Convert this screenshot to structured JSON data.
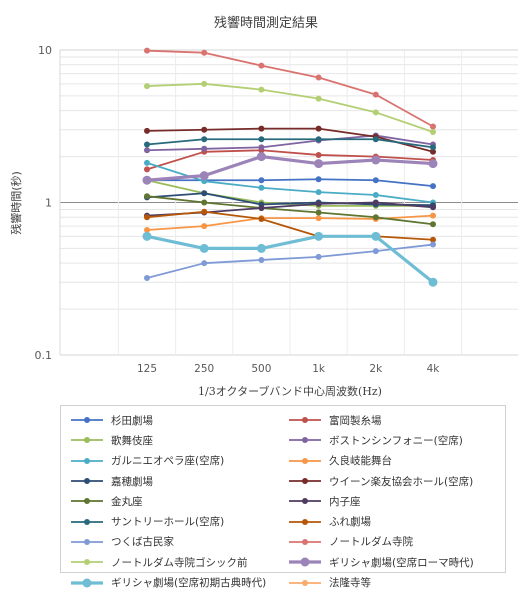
{
  "chart_data": {
    "type": "line",
    "title": "残響時間測定結果",
    "xlabel": "1/3オクターブバンド中心周波数(Hz)",
    "ylabel": "残響時間(秒)",
    "yscale": "log",
    "ylim": [
      0.1,
      10
    ],
    "yticks": [
      "10",
      "1",
      "0.1"
    ],
    "categories": [
      "125",
      "250",
      "500",
      "1k",
      "2k",
      "4k"
    ],
    "grid": "minor log gridlines, major line at 1",
    "legend_position": "bottom",
    "series": [
      {
        "name": "杉田劇場",
        "color": "#4472c4",
        "values": [
          1.4,
          1.4,
          1.4,
          1.42,
          1.4,
          1.28
        ]
      },
      {
        "name": "富岡製糸場",
        "color": "#c0504d",
        "values": [
          1.65,
          2.15,
          2.2,
          2.05,
          2.0,
          1.9
        ]
      },
      {
        "name": "歌舞伎座",
        "color": "#9bbb59",
        "values": [
          1.4,
          1.15,
          1.0,
          0.95,
          0.95,
          0.95
        ]
      },
      {
        "name": "ボストンシンフォニー(空席)",
        "color": "#8064a2",
        "values": [
          2.2,
          2.25,
          2.3,
          2.55,
          2.75,
          2.4
        ]
      },
      {
        "name": "ガルニエオペラ座(空席)",
        "color": "#4bacc6",
        "values": [
          1.82,
          1.38,
          1.25,
          1.17,
          1.12,
          1.0
        ]
      },
      {
        "name": "久良岐能舞台",
        "color": "#f79646",
        "values": [
          0.66,
          0.7,
          0.79,
          0.79,
          0.78,
          0.82
        ]
      },
      {
        "name": "嘉穂劇場",
        "color": "#2c4d75",
        "values": [
          1.08,
          1.15,
          0.97,
          1.0,
          0.97,
          0.96
        ]
      },
      {
        "name": "ウイーン楽友協会ホール(空席)",
        "color": "#772c2a",
        "values": [
          2.95,
          3.0,
          3.05,
          3.05,
          2.7,
          2.15
        ]
      },
      {
        "name": "金丸座",
        "color": "#5f7530",
        "values": [
          1.1,
          1.0,
          0.92,
          0.86,
          0.8,
          0.72
        ]
      },
      {
        "name": "内子座",
        "color": "#4d3b62",
        "values": [
          0.82,
          0.86,
          0.92,
          0.98,
          1.0,
          0.93
        ]
      },
      {
        "name": "サントリーホール(空席)",
        "color": "#276a7c",
        "values": [
          2.4,
          2.6,
          2.6,
          2.6,
          2.6,
          2.3
        ]
      },
      {
        "name": "ふれ劇場",
        "color": "#b65708",
        "values": [
          0.8,
          0.87,
          0.78,
          0.6,
          0.6,
          0.57
        ]
      },
      {
        "name": "つくば古民家",
        "color": "#7f9ad6",
        "values": [
          0.32,
          0.4,
          0.42,
          0.44,
          0.48,
          0.53
        ]
      },
      {
        "name": "ノートルダム寺院",
        "color": "#d9736f",
        "values": [
          9.9,
          9.6,
          7.9,
          6.6,
          5.1,
          3.15
        ]
      },
      {
        "name": "ノートルダム寺院ゴシック前",
        "color": "#b3cf74",
        "values": [
          5.8,
          6.0,
          5.5,
          4.8,
          3.9,
          2.9
        ]
      },
      {
        "name": "ギリシャ劇場(空席ローマ時代)",
        "color": "#9c83b8",
        "values": [
          1.4,
          1.5,
          2.0,
          1.8,
          1.9,
          1.8
        ]
      },
      {
        "name": "ギリシャ劇場(空席初期古典時代)",
        "color": "#6fbdd4",
        "values": [
          0.6,
          0.5,
          0.5,
          0.6,
          0.6,
          0.3
        ]
      },
      {
        "name": "法隆寺等",
        "color": "#f9ab6b",
        "values": [
          null,
          null,
          null,
          null,
          null,
          null
        ]
      }
    ]
  }
}
